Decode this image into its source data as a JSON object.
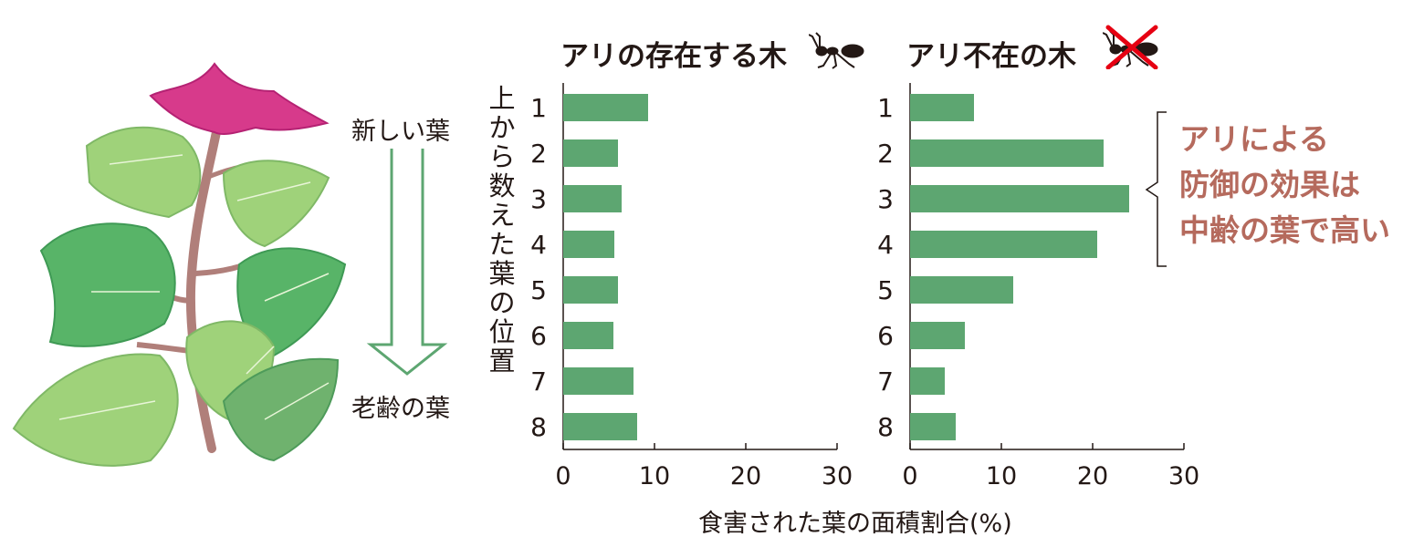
{
  "illustration": {
    "top_label": "新しい葉",
    "bottom_label": "老齢の葉"
  },
  "y_axis_label": "上から数えた葉の位置",
  "x_axis_label": "食害された葉の面積割合(%)",
  "annotation": [
    "アリによる",
    "防御の効果は",
    "中齢の葉で高い"
  ],
  "colors": {
    "bar": "#5da671",
    "annotation": "#b56a5d",
    "cross": "#e60012"
  },
  "icons": {
    "ant": "ant-icon",
    "no_ant": "ant-crossed-icon"
  },
  "chart_data": [
    {
      "type": "bar",
      "orientation": "horizontal",
      "title": "アリの存在する木",
      "categories": [
        "1",
        "2",
        "3",
        "4",
        "5",
        "6",
        "7",
        "8"
      ],
      "values": [
        9.3,
        6.0,
        6.4,
        5.6,
        6.0,
        5.5,
        7.7,
        8.1
      ],
      "xlim": [
        0,
        30
      ],
      "xticks": [
        0,
        10,
        20,
        30
      ],
      "grid": false
    },
    {
      "type": "bar",
      "orientation": "horizontal",
      "title": "アリ不在の木",
      "categories": [
        "1",
        "2",
        "3",
        "4",
        "5",
        "6",
        "7",
        "8"
      ],
      "values": [
        7.0,
        21.2,
        24.0,
        20.5,
        11.3,
        6.0,
        3.8,
        5.0
      ],
      "xlim": [
        0,
        30
      ],
      "xticks": [
        0,
        10,
        20,
        30
      ],
      "grid": false
    }
  ]
}
